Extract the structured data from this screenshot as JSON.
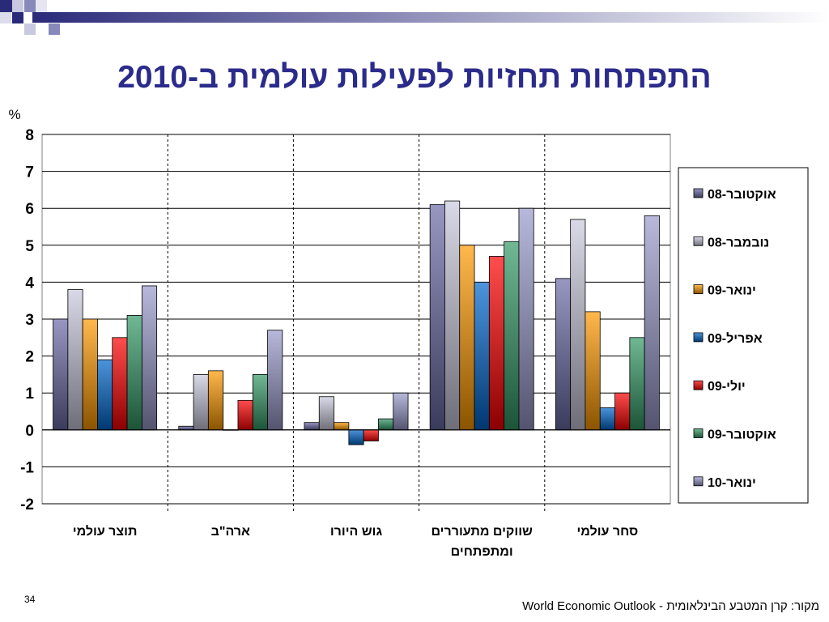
{
  "slide": {
    "title": "התפתחות תחזיות לפעילות עולמית ב-2010",
    "source": "מקור: קרן המטבע הבינלאומית - World Economic Outlook",
    "page_number": "34"
  },
  "chart_data": {
    "type": "bar",
    "ylabel": "%",
    "ylim": [
      -2,
      8
    ],
    "yticks": [
      8,
      7,
      6,
      5,
      4,
      3,
      2,
      1,
      0,
      -1,
      -2
    ],
    "categories": [
      "תוצר עולמי",
      "ארה\"ב",
      "גוש היורו",
      "שווקים מתעוררים ומתפתחים",
      "סחר עולמי"
    ],
    "legend_position": "right",
    "series": [
      {
        "name": "אוקטובר-08",
        "color": "#6b6ba8",
        "values": [
          3.0,
          0.1,
          0.2,
          6.1,
          4.1
        ]
      },
      {
        "name": "נובמבר-08",
        "color": "#c8c8dc",
        "values": [
          3.8,
          1.5,
          0.9,
          6.2,
          5.7
        ]
      },
      {
        "name": "ינואר-09",
        "color": "#ff9900",
        "values": [
          3.0,
          1.6,
          0.2,
          5.0,
          3.2
        ]
      },
      {
        "name": "אפריל-09",
        "color": "#0066cc",
        "values": [
          1.9,
          0.0,
          -0.4,
          4.0,
          0.6
        ]
      },
      {
        "name": "יולי-09",
        "color": "#ff0000",
        "values": [
          2.5,
          0.8,
          -0.3,
          4.7,
          1.0
        ]
      },
      {
        "name": "אוקטובר-09",
        "color": "#339966",
        "values": [
          3.1,
          1.5,
          0.3,
          5.1,
          2.5
        ]
      },
      {
        "name": "ינואר-10",
        "color": "#9999cc",
        "values": [
          3.9,
          2.7,
          1.0,
          6.0,
          5.8
        ]
      }
    ]
  }
}
